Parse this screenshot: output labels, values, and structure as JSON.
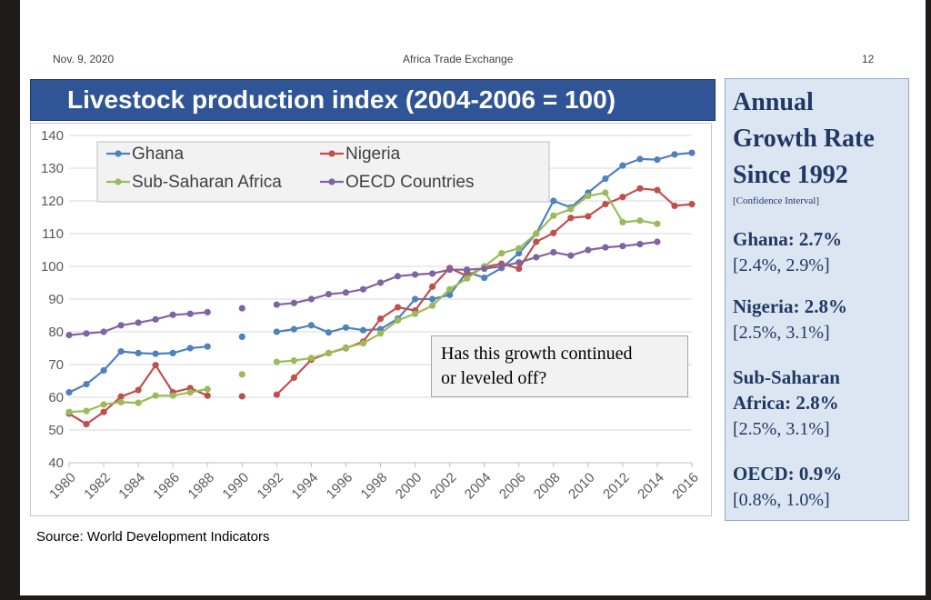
{
  "header": {
    "date": "Nov. 9, 2020",
    "center": "Africa Trade Exchange",
    "page": "12"
  },
  "title": "Livestock production index (2004-2006 = 100)",
  "source": "Source: World Development Indicators",
  "annotation": {
    "line1": "Has this growth continued",
    "line2": "or leveled off?"
  },
  "panel": {
    "heading_lines": [
      "Annual",
      "Growth Rate",
      "Since 1992"
    ],
    "ci_label": "[Confidence Interval]",
    "ghana_rate": "Ghana: 2.7%",
    "ghana_ci": "[2.4%, 2.9%]",
    "nigeria_rate": "Nigeria: 2.8%",
    "nigeria_ci": "[2.5%, 3.1%]",
    "ssa_rate_1": "Sub-Saharan",
    "ssa_rate_2": "Africa: 2.8%",
    "ssa_ci": "[2.5%, 3.1%]",
    "oecd_rate": "OECD: 0.9%",
    "oecd_ci": "[0.8%, 1.0%]"
  },
  "chart_data": {
    "type": "line",
    "title": "Livestock production index (2004-2006 = 100)",
    "xlabel": "",
    "ylabel": "",
    "xlim": [
      1980,
      2016
    ],
    "ylim": [
      40,
      140
    ],
    "y_ticks": [
      "40",
      "50",
      "60",
      "70",
      "80",
      "90",
      "100",
      "110",
      "120",
      "130",
      "140"
    ],
    "x_ticks": [
      "1980",
      "1982",
      "1984",
      "1986",
      "1988",
      "1990",
      "1992",
      "1994",
      "1996",
      "1998",
      "2000",
      "2002",
      "2004",
      "2006",
      "2008",
      "2010",
      "2012",
      "2014",
      "2016"
    ],
    "grid": "horizontal",
    "legend_position": "top-left",
    "series": [
      {
        "name": "Ghana",
        "color": "#4f81bd",
        "x": [
          1980,
          1981,
          1982,
          1983,
          1984,
          1985,
          1986,
          1987,
          1988,
          1990,
          1992,
          1993,
          1994,
          1995,
          1996,
          1997,
          1998,
          1999,
          2000,
          2001,
          2002,
          2003,
          2004,
          2005,
          2006,
          2007,
          2008,
          2009,
          2010,
          2011,
          2012,
          2013,
          2014,
          2015,
          2016
        ],
        "y": [
          61.5,
          64,
          68.2,
          74,
          73.5,
          73.3,
          73.5,
          75,
          75.5,
          78.5,
          80,
          80.8,
          82,
          79.8,
          81.3,
          80.5,
          80.8,
          84,
          90,
          90,
          91.3,
          98.3,
          96.5,
          99.5,
          104,
          110,
          120,
          118,
          122.5,
          126.8,
          130.8,
          132.8,
          132.6,
          134.2,
          134.7
        ]
      },
      {
        "name": "Nigeria",
        "color": "#c0504d",
        "x": [
          1980,
          1981,
          1982,
          1983,
          1984,
          1985,
          1986,
          1987,
          1988,
          1990,
          1992,
          1993,
          1994,
          1995,
          1996,
          1997,
          1998,
          1999,
          2000,
          2001,
          2002,
          2003,
          2004,
          2005,
          2006,
          2007,
          2008,
          2009,
          2010,
          2011,
          2012,
          2013,
          2014,
          2015,
          2016
        ],
        "y": [
          55,
          51.8,
          55.5,
          60.2,
          62.2,
          69.8,
          61.5,
          62.8,
          60.5,
          60.3,
          60.8,
          66,
          71.5,
          73.5,
          75,
          77,
          84,
          87.5,
          86.5,
          93.8,
          99.5,
          97,
          99.8,
          100.8,
          99.3,
          107.5,
          110.2,
          114.8,
          115.3,
          119,
          121.2,
          123.8,
          123.3,
          118.5,
          119
        ]
      },
      {
        "name": "Sub-Saharan Africa",
        "color": "#9bbb59",
        "x": [
          1980,
          1981,
          1982,
          1983,
          1984,
          1985,
          1986,
          1987,
          1988,
          1990,
          1992,
          1993,
          1994,
          1995,
          1996,
          1997,
          1998,
          1999,
          2000,
          2001,
          2002,
          2003,
          2004,
          2005,
          2006,
          2007,
          2008,
          2009,
          2010,
          2011,
          2012,
          2013,
          2014
        ],
        "y": [
          55.5,
          55.8,
          57.8,
          58.5,
          58.3,
          60.5,
          60.5,
          61.5,
          62.5,
          67,
          70.8,
          71.2,
          72,
          73.5,
          75.2,
          76.5,
          79.5,
          83.5,
          85.5,
          88,
          93,
          96.3,
          100,
          104,
          105.5,
          110,
          115.5,
          117.5,
          121.5,
          122.5,
          113.5,
          114,
          113
        ]
      },
      {
        "name": "OECD Countries",
        "color": "#8064a2",
        "x": [
          1980,
          1981,
          1982,
          1983,
          1984,
          1985,
          1986,
          1987,
          1988,
          1990,
          1992,
          1993,
          1994,
          1995,
          1996,
          1997,
          1998,
          1999,
          2000,
          2001,
          2002,
          2003,
          2004,
          2005,
          2006,
          2007,
          2008,
          2009,
          2010,
          2011,
          2012,
          2013,
          2014
        ],
        "y": [
          79,
          79.5,
          80,
          82,
          82.8,
          83.8,
          85.2,
          85.5,
          86,
          87.2,
          88.3,
          88.8,
          90,
          91.5,
          92,
          93,
          95,
          97,
          97.5,
          97.8,
          99,
          99,
          99.3,
          100,
          101.2,
          102.8,
          104.3,
          103.3,
          105,
          105.8,
          106.2,
          106.8,
          107.5
        ]
      }
    ]
  }
}
